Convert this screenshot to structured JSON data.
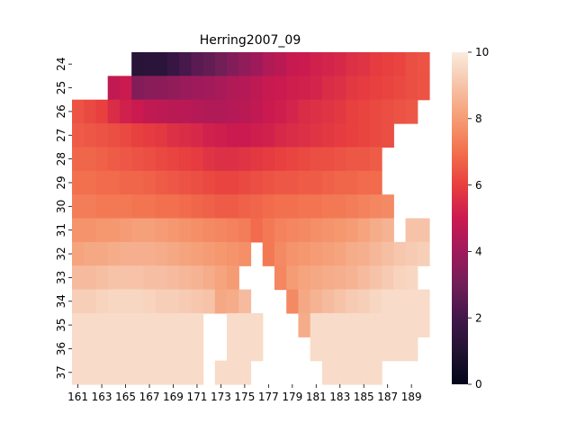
{
  "chart_data": {
    "type": "heatmap",
    "title": "Herring2007_09",
    "xlabel": "",
    "ylabel": "",
    "x_start": 161,
    "x_tick_labels": [
      "161",
      "163",
      "165",
      "167",
      "169",
      "171",
      "173",
      "175",
      "177",
      "179",
      "181",
      "183",
      "185",
      "187",
      "189"
    ],
    "y_tick_labels": [
      "24",
      "25",
      "26",
      "27",
      "28",
      "29",
      "30",
      "31",
      "32",
      "33",
      "34",
      "35",
      "36",
      "37"
    ],
    "colorbar": {
      "min": 0,
      "max": 10,
      "ticks": [
        "0",
        "2",
        "4",
        "6",
        "8",
        "10"
      ],
      "colormap": "rocket"
    },
    "grid": false,
    "rows": [
      {
        "y": 24,
        "values": [
          null,
          null,
          null,
          null,
          null,
          1.2,
          1.3,
          1.3,
          1.7,
          2.1,
          2.5,
          2.7,
          3.0,
          3.4,
          3.7,
          4.0,
          4.4,
          4.6,
          4.9,
          5.0,
          5.2,
          5.3,
          5.4,
          5.6,
          5.7,
          5.9,
          6.0,
          6.1,
          6.3,
          6.4
        ]
      },
      {
        "y": 25,
        "values": [
          null,
          null,
          null,
          4.8,
          5.0,
          3.4,
          3.5,
          3.6,
          3.7,
          3.9,
          4.0,
          4.1,
          4.2,
          4.4,
          4.5,
          4.7,
          4.9,
          5.0,
          5.1,
          5.2,
          5.3,
          5.5,
          5.6,
          5.8,
          5.9,
          6.0,
          6.1,
          6.2,
          6.3,
          6.4
        ]
      },
      {
        "y": 26,
        "values": [
          6.4,
          6.2,
          6.0,
          5.5,
          5.2,
          5.0,
          4.8,
          4.7,
          4.6,
          4.6,
          4.5,
          4.4,
          4.4,
          4.5,
          4.6,
          4.8,
          5.0,
          5.1,
          5.3,
          5.5,
          5.6,
          5.7,
          5.8,
          6.0,
          6.1,
          6.2,
          6.3,
          6.4,
          6.5,
          null
        ]
      },
      {
        "y": 27,
        "values": [
          6.6,
          6.5,
          6.4,
          6.3,
          6.2,
          6.0,
          5.9,
          5.8,
          5.6,
          5.5,
          5.4,
          5.2,
          5.1,
          5.0,
          5.0,
          5.1,
          5.2,
          5.4,
          5.5,
          5.6,
          5.7,
          5.8,
          5.9,
          6.0,
          6.1,
          6.2,
          6.3,
          null,
          null,
          null
        ]
      },
      {
        "y": 28,
        "values": [
          6.8,
          6.8,
          6.7,
          6.6,
          6.5,
          6.4,
          6.3,
          6.2,
          6.1,
          6.0,
          5.9,
          5.7,
          5.6,
          5.6,
          5.7,
          5.8,
          5.9,
          6.0,
          6.1,
          6.2,
          6.3,
          6.3,
          6.4,
          6.5,
          6.5,
          6.6,
          null,
          null,
          null,
          null
        ]
      },
      {
        "y": 29,
        "values": [
          7.0,
          7.0,
          6.9,
          6.9,
          6.8,
          6.8,
          6.7,
          6.6,
          6.5,
          6.4,
          6.3,
          6.2,
          6.1,
          6.1,
          6.2,
          6.3,
          6.4,
          6.5,
          6.5,
          6.6,
          6.6,
          6.7,
          6.8,
          6.8,
          6.9,
          6.9,
          null,
          null,
          null,
          null
        ]
      },
      {
        "y": 30,
        "values": [
          7.3,
          7.3,
          7.2,
          7.2,
          7.2,
          7.1,
          7.1,
          7.0,
          7.0,
          6.9,
          6.8,
          6.7,
          6.6,
          6.6,
          6.7,
          6.8,
          6.9,
          7.0,
          7.0,
          7.1,
          7.1,
          7.2,
          7.2,
          7.3,
          7.4,
          7.5,
          7.6,
          null,
          null,
          null
        ]
      },
      {
        "y": 31,
        "values": [
          7.8,
          7.8,
          7.9,
          7.9,
          8.0,
          8.1,
          8.1,
          8.0,
          7.9,
          7.8,
          7.7,
          7.6,
          7.5,
          7.4,
          7.3,
          6.9,
          7.2,
          7.4,
          7.5,
          7.6,
          7.7,
          7.8,
          7.9,
          8.0,
          8.2,
          8.4,
          8.6,
          null,
          9.0,
          9.0
        ]
      },
      {
        "y": 32,
        "values": [
          8.2,
          8.3,
          8.3,
          8.4,
          8.5,
          8.5,
          8.5,
          8.4,
          8.3,
          8.2,
          8.1,
          8.0,
          7.9,
          7.8,
          7.7,
          null,
          7.2,
          7.6,
          7.8,
          7.9,
          8.0,
          8.1,
          8.2,
          8.4,
          8.5,
          8.7,
          8.9,
          9.1,
          9.2,
          9.3
        ]
      },
      {
        "y": 33,
        "values": [
          8.8,
          8.8,
          8.9,
          9.0,
          9.0,
          9.0,
          8.9,
          8.9,
          8.8,
          8.7,
          8.6,
          8.4,
          8.2,
          8.0,
          null,
          null,
          null,
          7.5,
          8.0,
          8.2,
          8.3,
          8.4,
          8.5,
          8.6,
          8.8,
          9.0,
          9.2,
          9.4,
          9.5,
          null
        ]
      },
      {
        "y": 34,
        "values": [
          9.3,
          9.3,
          9.4,
          9.5,
          9.5,
          9.5,
          9.4,
          9.3,
          9.3,
          9.2,
          9.1,
          9.0,
          8.3,
          8.4,
          8.8,
          null,
          null,
          null,
          7.6,
          8.3,
          8.6,
          8.8,
          9.0,
          9.2,
          9.3,
          9.5,
          9.6,
          9.6,
          9.6,
          9.6
        ]
      },
      {
        "y": 35,
        "values": [
          9.6,
          9.6,
          9.6,
          9.6,
          9.6,
          9.6,
          9.6,
          9.6,
          9.6,
          9.6,
          9.6,
          null,
          null,
          9.6,
          9.6,
          9.6,
          null,
          null,
          null,
          8.4,
          9.6,
          9.6,
          9.6,
          9.6,
          9.6,
          9.6,
          9.6,
          9.6,
          9.6,
          9.6
        ]
      },
      {
        "y": 36,
        "values": [
          9.6,
          9.6,
          9.6,
          9.6,
          9.6,
          9.6,
          9.6,
          9.6,
          9.6,
          9.6,
          9.6,
          null,
          null,
          9.6,
          9.6,
          9.6,
          null,
          null,
          null,
          null,
          9.6,
          9.6,
          9.6,
          9.6,
          9.6,
          9.6,
          9.6,
          9.6,
          9.6,
          null
        ]
      },
      {
        "y": 37,
        "values": [
          9.6,
          9.6,
          9.6,
          9.6,
          9.6,
          9.6,
          9.6,
          9.6,
          9.6,
          9.6,
          9.6,
          null,
          9.6,
          9.6,
          9.6,
          null,
          null,
          null,
          null,
          null,
          null,
          9.6,
          9.6,
          9.6,
          9.6,
          9.6,
          null,
          null,
          null,
          null
        ]
      }
    ]
  }
}
